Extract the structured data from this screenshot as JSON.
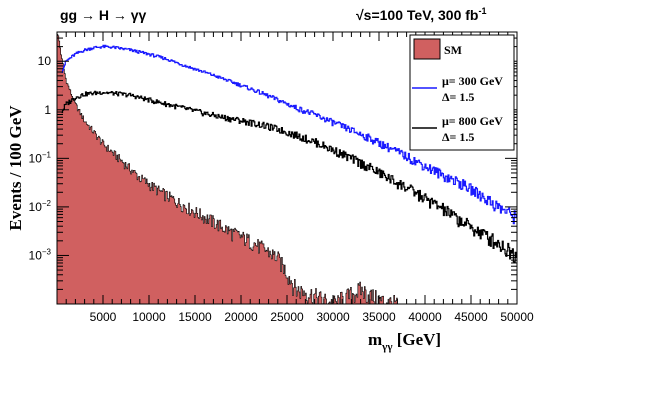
{
  "chart_data": {
    "type": "histogram",
    "title_left": "gg → H → γγ",
    "title_right": "√s=100 TeV, 300 fb",
    "title_right_sup": "-1",
    "xlabel": "m",
    "xlabel_sub": "γγ",
    "xlabel_unit": " [GeV]",
    "ylabel": "Events  / 100 GeV",
    "xlim": [
      0,
      50000
    ],
    "ylim": [
      0.0001,
      40
    ],
    "yscale": "log",
    "grid": false,
    "legend_position": "top-right",
    "x_ticks": [
      "5000",
      "10000",
      "15000",
      "20000",
      "25000",
      "30000",
      "35000",
      "40000",
      "45000",
      "50000"
    ],
    "y_ticks": [
      {
        "value": 10,
        "base": "10",
        "exp": ""
      },
      {
        "value": 1,
        "base": "1",
        "exp": ""
      },
      {
        "value": 0.1,
        "base": "10",
        "exp": "−1"
      },
      {
        "value": 0.01,
        "base": "10",
        "exp": "−2"
      },
      {
        "value": 0.001,
        "base": "10",
        "exp": "−3"
      }
    ],
    "bin_width": 100,
    "series": [
      {
        "name": "SM",
        "style": "filled",
        "color": "#d06060",
        "edge_color": "#000000",
        "points": [
          [
            0,
            40
          ],
          [
            200,
            30
          ],
          [
            500,
            12
          ],
          [
            1000,
            4
          ],
          [
            2000,
            1.3
          ],
          [
            3000,
            0.6
          ],
          [
            4000,
            0.35
          ],
          [
            5000,
            0.2
          ],
          [
            7000,
            0.09
          ],
          [
            9000,
            0.04
          ],
          [
            11000,
            0.022
          ],
          [
            13000,
            0.013
          ],
          [
            15000,
            0.008
          ],
          [
            17000,
            0.005
          ],
          [
            19000,
            0.003
          ],
          [
            21000,
            0.002
          ],
          [
            23000,
            0.0012
          ],
          [
            24000,
            0.0009
          ],
          [
            25000,
            0.00045
          ],
          [
            26000,
            0.0002
          ],
          [
            27000,
            0.00018
          ],
          [
            30000,
            0.0001
          ],
          [
            33000,
            0.0002
          ],
          [
            35000,
            0.00012
          ],
          [
            37000,
            0.0001
          ]
        ]
      },
      {
        "name": "μ= 300 GeV\nΔ= 1.5",
        "label_line1": "μ= 300 GeV",
        "label_line2": "Δ= 1.5",
        "style": "step",
        "color": "#1a1aff",
        "points": [
          [
            500,
            6
          ],
          [
            1000,
            10
          ],
          [
            2000,
            14
          ],
          [
            3000,
            17
          ],
          [
            4000,
            19
          ],
          [
            5000,
            20
          ],
          [
            6000,
            19.5
          ],
          [
            8000,
            17
          ],
          [
            10000,
            14
          ],
          [
            12000,
            11
          ],
          [
            14000,
            8
          ],
          [
            16000,
            6
          ],
          [
            18000,
            4.4
          ],
          [
            20000,
            3.2
          ],
          [
            22000,
            2.3
          ],
          [
            24000,
            1.6
          ],
          [
            26000,
            1.1
          ],
          [
            28000,
            0.8
          ],
          [
            30000,
            0.55
          ],
          [
            32000,
            0.38
          ],
          [
            34000,
            0.26
          ],
          [
            36000,
            0.17
          ],
          [
            38000,
            0.11
          ],
          [
            40000,
            0.07
          ],
          [
            42000,
            0.045
          ],
          [
            44000,
            0.03
          ],
          [
            46000,
            0.018
          ],
          [
            48000,
            0.01
          ],
          [
            50000,
            0.006
          ]
        ]
      },
      {
        "name": "μ= 800 GeV\nΔ= 1.5",
        "label_line1": "μ= 800 GeV",
        "label_line2": "Δ= 1.5",
        "style": "step",
        "color": "#000000",
        "points": [
          [
            500,
            0.9
          ],
          [
            1000,
            1.3
          ],
          [
            2000,
            1.8
          ],
          [
            3000,
            2.1
          ],
          [
            4000,
            2.2
          ],
          [
            5000,
            2.3
          ],
          [
            6000,
            2.2
          ],
          [
            8000,
            2.0
          ],
          [
            10000,
            1.6
          ],
          [
            12000,
            1.3
          ],
          [
            14000,
            1.05
          ],
          [
            16000,
            0.85
          ],
          [
            18000,
            0.7
          ],
          [
            20000,
            0.6
          ],
          [
            22000,
            0.5
          ],
          [
            24000,
            0.4
          ],
          [
            26000,
            0.3
          ],
          [
            28000,
            0.22
          ],
          [
            30000,
            0.15
          ],
          [
            32000,
            0.1
          ],
          [
            34000,
            0.065
          ],
          [
            36000,
            0.04
          ],
          [
            38000,
            0.025
          ],
          [
            40000,
            0.015
          ],
          [
            42000,
            0.009
          ],
          [
            44000,
            0.005
          ],
          [
            46000,
            0.003
          ],
          [
            48000,
            0.0018
          ],
          [
            50000,
            0.001
          ]
        ]
      }
    ]
  }
}
